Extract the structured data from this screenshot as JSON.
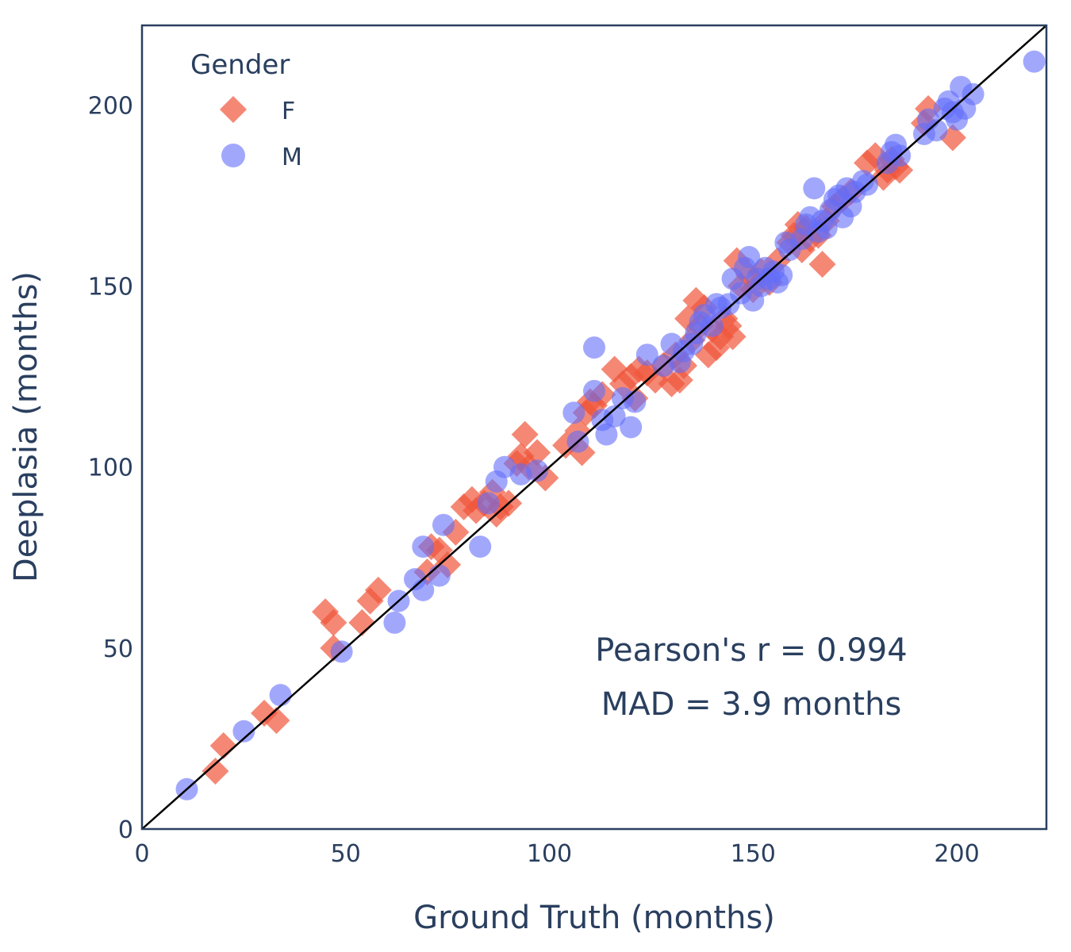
{
  "chart_data": {
    "type": "scatter",
    "xlabel": "Ground Truth (months)",
    "ylabel": "Deeplasia (months)",
    "xlim": [
      0,
      222
    ],
    "ylim": [
      0,
      222
    ],
    "x_ticks": [
      0,
      50,
      100,
      150,
      200
    ],
    "y_ticks": [
      0,
      50,
      100,
      150,
      200
    ],
    "grid": false,
    "legend": {
      "title": "Gender",
      "position": "top-left"
    },
    "reference_line": {
      "from": [
        0,
        0
      ],
      "to": [
        222,
        222
      ],
      "color": "#000000"
    },
    "annotations": [
      "Pearson's r = 0.994",
      "MAD = 3.9 months"
    ],
    "series": [
      {
        "name": "F",
        "marker": "diamond",
        "color": "#EF553B",
        "points": [
          [
            18,
            16
          ],
          [
            20,
            23
          ],
          [
            30,
            32
          ],
          [
            33,
            30
          ],
          [
            45,
            60
          ],
          [
            47,
            57
          ],
          [
            47,
            50
          ],
          [
            54,
            57
          ],
          [
            56,
            63
          ],
          [
            58,
            66
          ],
          [
            70,
            71
          ],
          [
            71,
            78
          ],
          [
            73,
            77
          ],
          [
            75,
            73
          ],
          [
            77,
            82
          ],
          [
            79,
            89
          ],
          [
            81,
            91
          ],
          [
            82,
            88
          ],
          [
            84,
            90
          ],
          [
            86,
            93
          ],
          [
            87,
            87
          ],
          [
            88,
            89
          ],
          [
            90,
            90
          ],
          [
            92,
            101
          ],
          [
            93,
            103
          ],
          [
            94,
            109
          ],
          [
            95,
            100
          ],
          [
            97,
            104
          ],
          [
            99,
            97
          ],
          [
            104,
            106
          ],
          [
            107,
            110
          ],
          [
            108,
            104
          ],
          [
            109,
            115
          ],
          [
            110,
            118
          ],
          [
            111,
            117
          ],
          [
            113,
            120
          ],
          [
            116,
            127
          ],
          [
            118,
            123
          ],
          [
            120,
            125
          ],
          [
            121,
            119
          ],
          [
            122,
            127
          ],
          [
            124,
            126
          ],
          [
            126,
            124
          ],
          [
            128,
            128
          ],
          [
            130,
            123
          ],
          [
            131,
            131
          ],
          [
            132,
            124
          ],
          [
            133,
            128
          ],
          [
            134,
            141
          ],
          [
            135,
            135
          ],
          [
            136,
            146
          ],
          [
            137,
            139
          ],
          [
            138,
            144
          ],
          [
            139,
            131
          ],
          [
            140,
            138
          ],
          [
            141,
            133
          ],
          [
            142,
            136
          ],
          [
            143,
            141
          ],
          [
            144,
            139
          ],
          [
            145,
            136
          ],
          [
            146,
            157
          ],
          [
            147,
            150
          ],
          [
            149,
            153
          ],
          [
            150,
            149
          ],
          [
            152,
            154
          ],
          [
            154,
            151
          ],
          [
            156,
            157
          ],
          [
            159,
            162
          ],
          [
            160,
            164
          ],
          [
            161,
            167
          ],
          [
            162,
            160
          ],
          [
            163,
            166
          ],
          [
            164,
            163
          ],
          [
            166,
            164
          ],
          [
            167,
            156
          ],
          [
            168,
            168
          ],
          [
            170,
            172
          ],
          [
            172,
            174
          ],
          [
            174,
            176
          ],
          [
            178,
            184
          ],
          [
            180,
            186
          ],
          [
            182,
            180
          ],
          [
            183,
            182
          ],
          [
            184,
            185
          ],
          [
            185,
            183
          ],
          [
            186,
            182
          ],
          [
            192,
            195
          ],
          [
            193,
            199
          ],
          [
            199,
            191
          ]
        ]
      },
      {
        "name": "M",
        "marker": "circle",
        "color": "#636EFA",
        "points": [
          [
            11,
            11
          ],
          [
            25,
            27
          ],
          [
            34,
            37
          ],
          [
            49,
            49
          ],
          [
            62,
            57
          ],
          [
            63,
            63
          ],
          [
            67,
            69
          ],
          [
            69,
            78
          ],
          [
            69,
            66
          ],
          [
            73,
            70
          ],
          [
            74,
            84
          ],
          [
            83,
            78
          ],
          [
            85,
            90
          ],
          [
            87,
            96
          ],
          [
            89,
            100
          ],
          [
            93,
            98
          ],
          [
            97,
            99
          ],
          [
            106,
            115
          ],
          [
            107,
            107
          ],
          [
            111,
            121
          ],
          [
            111,
            133
          ],
          [
            113,
            113
          ],
          [
            114,
            109
          ],
          [
            116,
            114
          ],
          [
            118,
            119
          ],
          [
            120,
            111
          ],
          [
            121,
            118
          ],
          [
            124,
            131
          ],
          [
            128,
            128
          ],
          [
            130,
            134
          ],
          [
            132,
            129
          ],
          [
            133,
            132
          ],
          [
            135,
            134
          ],
          [
            136,
            137
          ],
          [
            137,
            140
          ],
          [
            138,
            142
          ],
          [
            140,
            139
          ],
          [
            141,
            145
          ],
          [
            142,
            144
          ],
          [
            144,
            145
          ],
          [
            145,
            152
          ],
          [
            147,
            148
          ],
          [
            148,
            155
          ],
          [
            149,
            158
          ],
          [
            150,
            146
          ],
          [
            151,
            152
          ],
          [
            152,
            150
          ],
          [
            153,
            155
          ],
          [
            154,
            152
          ],
          [
            155,
            154
          ],
          [
            156,
            151
          ],
          [
            157,
            153
          ],
          [
            158,
            162
          ],
          [
            159,
            160
          ],
          [
            162,
            163
          ],
          [
            163,
            167
          ],
          [
            164,
            169
          ],
          [
            165,
            177
          ],
          [
            166,
            165
          ],
          [
            167,
            168
          ],
          [
            168,
            166
          ],
          [
            169,
            171
          ],
          [
            170,
            174
          ],
          [
            171,
            175
          ],
          [
            172,
            169
          ],
          [
            173,
            177
          ],
          [
            174,
            172
          ],
          [
            175,
            176
          ],
          [
            177,
            179
          ],
          [
            178,
            178
          ],
          [
            183,
            184
          ],
          [
            184,
            187
          ],
          [
            185,
            189
          ],
          [
            186,
            186
          ],
          [
            192,
            192
          ],
          [
            193,
            196
          ],
          [
            195,
            193
          ],
          [
            197,
            199
          ],
          [
            198,
            201
          ],
          [
            199,
            198
          ],
          [
            200,
            196
          ],
          [
            201,
            205
          ],
          [
            202,
            199
          ],
          [
            204,
            203
          ],
          [
            219,
            212
          ]
        ]
      }
    ]
  }
}
